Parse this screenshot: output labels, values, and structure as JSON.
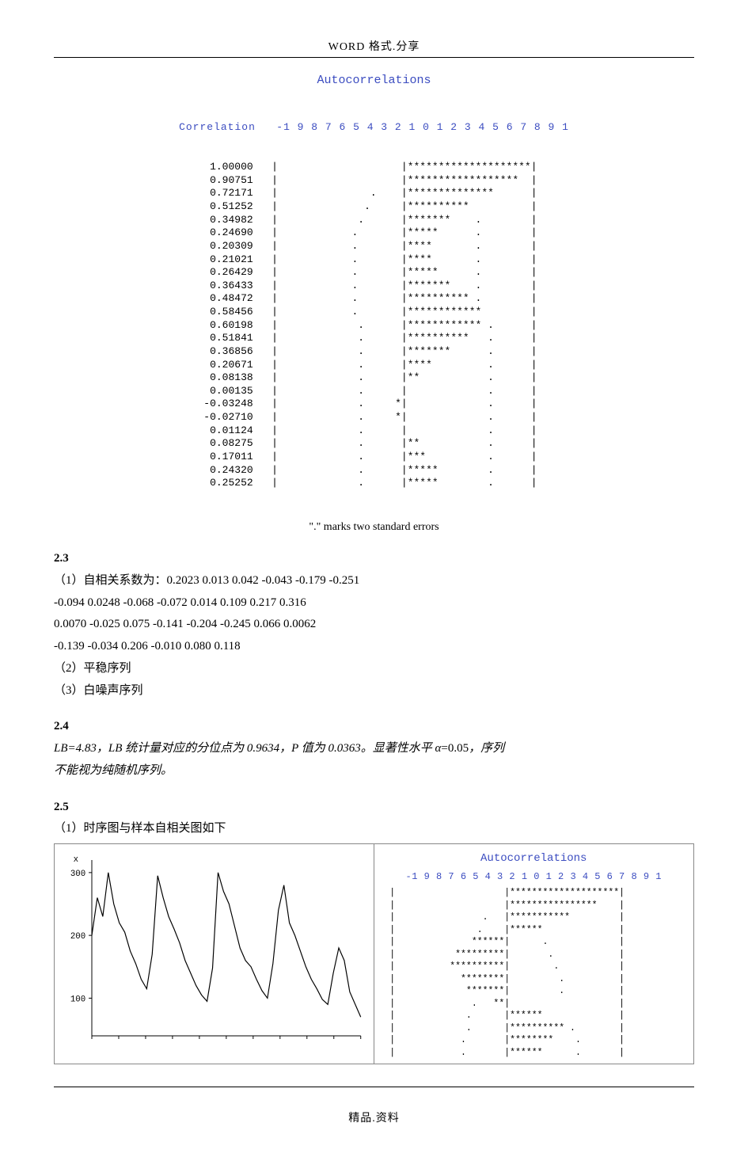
{
  "header": {
    "text": "WORD 格式.分享"
  },
  "footer": {
    "text": "精品.资料"
  },
  "acf1": {
    "title": "Autocorrelations",
    "label": "Correlation",
    "axis_labels": [
      "-1",
      "9",
      "8",
      "7",
      "6",
      "5",
      "4",
      "3",
      "2",
      "1",
      "0",
      "1",
      "2",
      "3",
      "4",
      "5",
      "6",
      "7",
      "8",
      "9",
      "1"
    ],
    "caption": "\".\" marks two standard errors",
    "color_title": "#3b4cc0",
    "color_text": "#000000",
    "values": [
      1.0,
      0.90751,
      0.72171,
      0.51252,
      0.34982,
      0.2469,
      0.20309,
      0.21021,
      0.26429,
      0.36433,
      0.48472,
      0.58456,
      0.60198,
      0.51841,
      0.36856,
      0.20671,
      0.08138,
      0.00135,
      -0.03248,
      -0.0271,
      0.01124,
      0.08275,
      0.17011,
      0.2432,
      0.25252
    ],
    "stars": [
      20,
      18,
      14,
      10,
      7,
      5,
      4,
      4,
      5,
      7,
      10,
      12,
      12,
      10,
      7,
      4,
      2,
      0,
      -1,
      -1,
      0,
      2,
      3,
      5,
      5
    ],
    "se_left": [
      null,
      null,
      5,
      6,
      7,
      8,
      8,
      8,
      8,
      8,
      8,
      8,
      7,
      7,
      7,
      7,
      7,
      7,
      7,
      7,
      7,
      7,
      7,
      7,
      7
    ],
    "se_right": [
      null,
      null,
      null,
      null,
      12,
      12,
      12,
      12,
      12,
      12,
      12,
      12,
      14,
      14,
      14,
      14,
      14,
      14,
      14,
      14,
      14,
      14,
      14,
      14,
      14
    ]
  },
  "section23": {
    "heading": "2.3",
    "line1_label": "（1）自相关系数为：",
    "coeffs": [
      "0.2023",
      "0.013",
      "0.042",
      "-0.043",
      "-0.179",
      "-0.251",
      "-0.094",
      "0.0248",
      "-0.068",
      "-0.072",
      "0.014",
      "0.109",
      "0.217",
      "0.316",
      "0.0070",
      "-0.025",
      "0.075",
      "-0.141",
      "-0.204",
      "-0.245",
      "0.066",
      "0.0062",
      "-0.139",
      "-0.034",
      "0.206",
      "-0.010",
      "0.080",
      "0.118"
    ],
    "line2": "（2）平稳序列",
    "line3": "（3）白噪声序列"
  },
  "section24": {
    "heading": "2.4",
    "text_a": "LB=4.83，LB 统计量对应的分位点为 0.9634，P 值为 0.0363。",
    "text_b_prefix": "显著性水平 ",
    "alpha": "α",
    "alpha_value": "=0.05",
    "text_b_suffix": "，序列",
    "text_c": "不能视为纯随机序列。"
  },
  "section25": {
    "heading": "2.5",
    "line1": "（1）时序图与样本自相关图如下"
  },
  "ts_chart": {
    "type": "line",
    "ylabel": "x",
    "y_ticks": [
      100,
      200,
      300
    ],
    "ylim": [
      40,
      320
    ],
    "xlim": [
      0,
      50
    ],
    "line_color": "#000000",
    "axis_color": "#000000",
    "background_color": "#ffffff",
    "line_width": 1.2,
    "series": [
      200,
      260,
      230,
      300,
      250,
      220,
      205,
      175,
      155,
      130,
      115,
      170,
      295,
      260,
      230,
      210,
      188,
      160,
      140,
      120,
      105,
      95,
      148,
      300,
      270,
      250,
      215,
      180,
      160,
      150,
      130,
      112,
      100,
      155,
      240,
      280,
      220,
      200,
      175,
      150,
      130,
      115,
      98,
      90,
      140,
      180,
      160,
      110,
      90,
      70
    ]
  },
  "acf2": {
    "title": "Autocorrelations",
    "axis_labels": [
      "-1",
      "9",
      "8",
      "7",
      "6",
      "5",
      "4",
      "3",
      "2",
      "1",
      "0",
      "1",
      "2",
      "3",
      "4",
      "5",
      "6",
      "7",
      "8",
      "9",
      "1"
    ],
    "values": [
      1.0,
      0.78,
      0.55,
      0.3,
      -0.3,
      -0.45,
      -0.5,
      -0.42,
      -0.35,
      -0.08,
      0.28,
      0.48,
      0.42,
      0.3
    ],
    "stars": [
      20,
      16,
      11,
      6,
      -6,
      -9,
      -10,
      -8,
      -7,
      -2,
      6,
      10,
      8,
      6
    ],
    "se_left": [
      null,
      null,
      4,
      5,
      null,
      null,
      null,
      null,
      null,
      6,
      7,
      7,
      8,
      8
    ],
    "se_right": [
      null,
      null,
      null,
      null,
      7,
      8,
      9,
      10,
      10,
      null,
      null,
      12,
      13,
      13
    ],
    "color_title": "#3b4cc0"
  }
}
